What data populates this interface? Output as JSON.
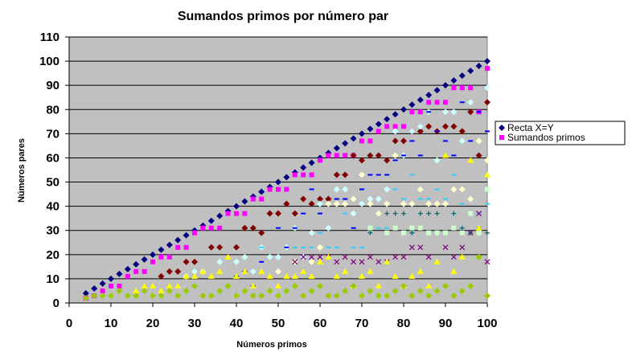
{
  "chart_data": {
    "type": "scatter",
    "title": "Sumandos primos por número par",
    "xlabel": "Números primos",
    "ylabel": "Números pares",
    "xlim": [
      0,
      100
    ],
    "ylim": [
      0,
      110
    ],
    "xticks": [
      0,
      10,
      20,
      30,
      40,
      50,
      60,
      70,
      80,
      90,
      100
    ],
    "yticks": [
      0,
      10,
      20,
      30,
      40,
      50,
      60,
      70,
      80,
      90,
      100,
      110
    ],
    "grid": "horizontal",
    "legend_placement": "right",
    "background": "#c0c0c0",
    "series": [
      {
        "name": "Recta X=Y",
        "marker": "diamond",
        "color": "#000080",
        "x": [
          4,
          6,
          8,
          10,
          12,
          14,
          16,
          18,
          20,
          22,
          24,
          26,
          28,
          30,
          32,
          34,
          36,
          38,
          40,
          42,
          44,
          46,
          48,
          50,
          52,
          54,
          56,
          58,
          60,
          62,
          64,
          66,
          68,
          70,
          72,
          74,
          76,
          78,
          80,
          82,
          84,
          86,
          88,
          90,
          92,
          94,
          96,
          98,
          100
        ],
        "y": [
          4,
          6,
          8,
          10,
          12,
          14,
          16,
          18,
          20,
          22,
          24,
          26,
          28,
          30,
          32,
          34,
          36,
          38,
          40,
          42,
          44,
          46,
          48,
          50,
          52,
          54,
          56,
          58,
          60,
          62,
          64,
          66,
          68,
          70,
          72,
          74,
          76,
          78,
          80,
          82,
          84,
          86,
          88,
          90,
          92,
          94,
          96,
          98,
          100
        ]
      },
      {
        "name": "Sumandos primos",
        "marker": "square",
        "color": "#ff00ff",
        "x": [
          4,
          6,
          8,
          10,
          12,
          14,
          16,
          18,
          20,
          22,
          24,
          26,
          28,
          30,
          32,
          34,
          36,
          38,
          40,
          42,
          44,
          46,
          48,
          50,
          52,
          54,
          56,
          58,
          60,
          62,
          64,
          66,
          68,
          70,
          72,
          74,
          76,
          78,
          80,
          82,
          84,
          86,
          88,
          90,
          92,
          94,
          96,
          98,
          100
        ],
        "y": [
          2,
          3,
          5,
          7,
          7,
          11,
          13,
          13,
          17,
          19,
          19,
          23,
          23,
          29,
          31,
          31,
          31,
          37,
          37,
          37,
          43,
          43,
          47,
          47,
          47,
          53,
          53,
          53,
          59,
          61,
          61,
          61,
          61,
          67,
          67,
          71,
          73,
          73,
          73,
          79,
          79,
          83,
          83,
          83,
          89,
          89,
          89,
          79,
          97
        ]
      },
      {
        "marker": "diamond",
        "color": "#800000",
        "x": [
          22,
          24,
          26,
          28,
          30,
          34,
          36,
          40,
          42,
          44,
          46,
          48,
          50,
          52,
          54,
          56,
          58,
          60,
          62,
          64,
          66,
          68,
          70,
          72,
          74,
          76,
          78,
          80,
          82,
          84,
          86,
          88,
          90,
          92,
          94,
          96,
          98,
          100
        ],
        "y": [
          11,
          13,
          13,
          17,
          17,
          23,
          23,
          23,
          31,
          31,
          29,
          37,
          37,
          41,
          37,
          43,
          41,
          43,
          43,
          53,
          53,
          61,
          59,
          61,
          61,
          59,
          67,
          67,
          71,
          71,
          73,
          71,
          73,
          73,
          71,
          79,
          61,
          83
        ]
      },
      {
        "marker": "diamond",
        "color": "#ccffff",
        "x": [
          28,
          30,
          32,
          36,
          40,
          42,
          44,
          46,
          48,
          50,
          52,
          54,
          56,
          58,
          60,
          62,
          64,
          66,
          68,
          70,
          72,
          74,
          76,
          78,
          80,
          82,
          84,
          86,
          88,
          90,
          92,
          94,
          96,
          98,
          100
        ],
        "y": [
          11,
          13,
          13,
          17,
          17,
          19,
          13,
          23,
          19,
          19,
          23,
          31,
          19,
          29,
          41,
          31,
          47,
          47,
          37,
          41,
          43,
          43,
          47,
          71,
          61,
          71,
          73,
          79,
          59,
          79,
          79,
          67,
          83,
          67,
          89
        ]
      },
      {
        "marker": "dash",
        "color": "#0000ff",
        "x": [
          40,
          42,
          44,
          46,
          50,
          52,
          54,
          56,
          58,
          60,
          62,
          64,
          66,
          68,
          70,
          72,
          74,
          76,
          78,
          80,
          82,
          84,
          86,
          88,
          90,
          92,
          94,
          96,
          98,
          100
        ],
        "y": [
          11,
          13,
          7,
          17,
          31,
          23,
          31,
          37,
          47,
          37,
          41,
          43,
          43,
          31,
          47,
          53,
          53,
          53,
          59,
          61,
          67,
          61,
          79,
          71,
          67,
          61,
          83,
          67,
          79,
          71
        ]
      },
      {
        "marker": "dash",
        "color": "#33ccff",
        "x": [
          46,
          54,
          56,
          58,
          60,
          62,
          64,
          66,
          68,
          70,
          72,
          74,
          76,
          78,
          80,
          82,
          84,
          86,
          88,
          90,
          92,
          94,
          96,
          98,
          100
        ],
        "y": [
          23,
          23,
          23,
          23,
          29,
          23,
          23,
          37,
          23,
          23,
          31,
          31,
          31,
          47,
          43,
          53,
          43,
          43,
          47,
          43,
          53,
          41,
          43,
          37,
          41
        ]
      },
      {
        "marker": "diamond",
        "color": "#ffffcc",
        "x": [
          50,
          54,
          58,
          60,
          62,
          64,
          66,
          68,
          70,
          72,
          74,
          76,
          78,
          80,
          82,
          84,
          86,
          88,
          90,
          92,
          94,
          96,
          98,
          100
        ],
        "y": [
          13,
          17,
          17,
          23,
          41,
          41,
          41,
          43,
          53,
          41,
          37,
          41,
          61,
          41,
          41,
          47,
          41,
          41,
          41,
          47,
          47,
          43,
          67,
          59
        ]
      },
      {
        "marker": "x",
        "color": "#800080",
        "x": [
          54,
          56,
          58,
          60,
          62,
          64,
          66,
          68,
          70,
          72,
          74,
          76,
          78,
          80,
          82,
          84,
          86,
          88,
          90,
          92,
          94,
          96,
          98,
          100
        ],
        "y": [
          17,
          19,
          19,
          19,
          19,
          17,
          19,
          17,
          17,
          19,
          17,
          17,
          19,
          19,
          23,
          23,
          19,
          29,
          23,
          19,
          23,
          29,
          37,
          17
        ]
      },
      {
        "marker": "plus",
        "color": "#006666",
        "x": [
          72,
          76,
          78,
          80,
          82,
          84,
          86,
          88,
          90,
          92,
          94,
          96,
          98,
          100
        ],
        "y": [
          29,
          37,
          37,
          37,
          29,
          37,
          37,
          37,
          29,
          37,
          31,
          29,
          31,
          29
        ]
      },
      {
        "marker": "square",
        "color": "#ccffcc",
        "x": [
          72,
          76,
          78,
          80,
          82,
          84,
          86,
          88,
          90,
          92,
          94,
          96,
          98,
          100
        ],
        "y": [
          31,
          29,
          31,
          29,
          31,
          31,
          29,
          29,
          29,
          31,
          29,
          37,
          29,
          47
        ]
      },
      {
        "marker": "triangle",
        "color": "#ffff00",
        "x": [
          16,
          18,
          20,
          22,
          24,
          26,
          28,
          30,
          32,
          34,
          36,
          38,
          40,
          42,
          44,
          46,
          48,
          50,
          52,
          54,
          56,
          58,
          60,
          62,
          64,
          66,
          68,
          70,
          72,
          74,
          76,
          78,
          80,
          82,
          84,
          86,
          88,
          90,
          92,
          94,
          96,
          98,
          100
        ],
        "y": [
          5,
          7,
          7,
          5,
          7,
          7,
          11,
          11,
          13,
          11,
          13,
          19,
          11,
          13,
          7,
          13,
          11,
          7,
          11,
          11,
          13,
          11,
          17,
          19,
          11,
          13,
          7,
          11,
          13,
          7,
          17,
          11,
          7,
          11,
          13,
          7,
          17,
          61,
          13,
          19,
          59,
          31,
          53
        ]
      },
      {
        "marker": "diamond",
        "color": "#99cc00",
        "x": [
          4,
          6,
          8,
          10,
          12,
          14,
          16,
          18,
          20,
          22,
          24,
          26,
          28,
          30,
          32,
          34,
          36,
          38,
          40,
          42,
          44,
          46,
          48,
          50,
          52,
          54,
          56,
          58,
          60,
          62,
          64,
          66,
          68,
          70,
          72,
          74,
          76,
          78,
          80,
          82,
          84,
          86,
          88,
          90,
          92,
          94,
          96,
          98,
          100
        ],
        "y": [
          2,
          3,
          3,
          3,
          5,
          3,
          3,
          5,
          3,
          3,
          5,
          3,
          5,
          7,
          3,
          3,
          5,
          7,
          3,
          5,
          3,
          3,
          5,
          3,
          5,
          7,
          3,
          5,
          7,
          3,
          3,
          5,
          7,
          3,
          5,
          3,
          3,
          5,
          7,
          3,
          5,
          3,
          5,
          7,
          3,
          5,
          7,
          19,
          3
        ]
      }
    ]
  }
}
